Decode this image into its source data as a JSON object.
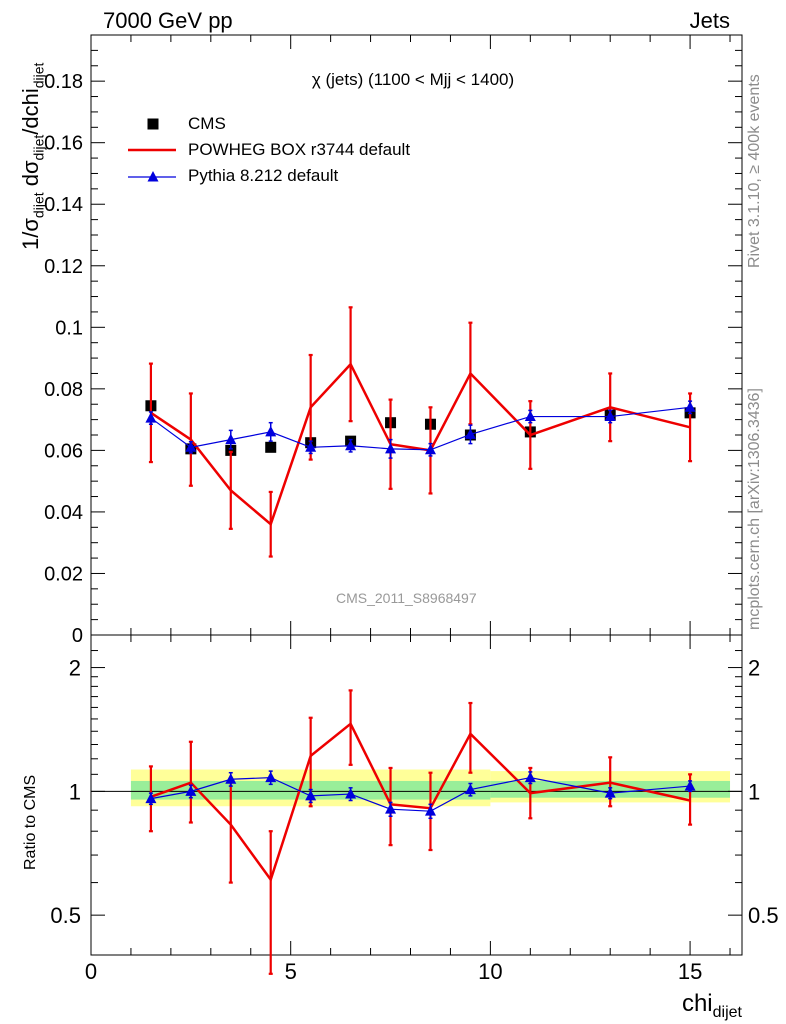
{
  "header": {
    "left": "7000 GeV pp",
    "right": "Jets"
  },
  "side_text": {
    "top": "Rivet 3.1.10, ≥ 400k events",
    "bottom": "mcplots.cern.ch [arXiv:1306.3436]"
  },
  "watermark": "CMS_2011_S8968497",
  "chart_data": [
    {
      "type": "scatter",
      "title": "χ (jets) (1100 < Mjj < 1400)",
      "xlabel_main": "chi",
      "xlabel_sub": "dijet",
      "ylabel_prefix": "1/σ",
      "ylabel_sub1": "dijet",
      "ylabel_mid": " dσ",
      "ylabel_sub2": "dijet",
      "ylabel_tail": "/dchi",
      "ylabel_sub3": "dijet",
      "xlim": [
        0,
        16.3
      ],
      "ylim": [
        0,
        0.195
      ],
      "x_ticks": [
        0,
        5,
        10,
        15
      ],
      "y_ticks": [
        0,
        0.02,
        0.04,
        0.06,
        0.08,
        0.1,
        0.12,
        0.14,
        0.16,
        0.18
      ],
      "y_tick_labels": [
        "0",
        "0.02",
        "0.04",
        "0.06",
        "0.08",
        "0.1",
        "0.12",
        "0.14",
        "0.16",
        "0.18"
      ],
      "legend": [
        "CMS",
        "POWHEG BOX r3744 default",
        "Pythia 8.212 default"
      ],
      "x": [
        1.5,
        2.5,
        3.5,
        4.5,
        5.5,
        6.5,
        7.5,
        8.5,
        9.5,
        11,
        13,
        15
      ],
      "series": [
        {
          "name": "CMS",
          "color": "#000000",
          "values": [
            0.0745,
            0.0605,
            0.06,
            0.061,
            0.0625,
            0.063,
            0.069,
            0.0685,
            0.065,
            0.066,
            0.0715,
            0.0722
          ],
          "err": [
            0.0015,
            0.0012,
            0.0012,
            0.0012,
            0.0012,
            0.0012,
            0.0015,
            0.0015,
            0.0015,
            0.0015,
            0.0015,
            0.0015
          ]
        },
        {
          "name": "POWHEG BOX r3744 default",
          "color": "#ee0000",
          "values": [
            0.0722,
            0.0635,
            0.047,
            0.036,
            0.074,
            0.088,
            0.062,
            0.06,
            0.085,
            0.065,
            0.074,
            0.0675
          ],
          "err": [
            0.016,
            0.015,
            0.0125,
            0.0105,
            0.017,
            0.0185,
            0.0145,
            0.014,
            0.0165,
            0.011,
            0.011,
            0.011
          ]
        },
        {
          "name": "Pythia 8.212 default",
          "color": "#0000dd",
          "values": [
            0.0705,
            0.061,
            0.0635,
            0.066,
            0.061,
            0.0615,
            0.0605,
            0.0602,
            0.0652,
            0.071,
            0.071,
            0.074
          ],
          "err": [
            0.002,
            0.0018,
            0.003,
            0.003,
            0.002,
            0.002,
            0.003,
            0.002,
            0.003,
            0.002,
            0.002,
            0.002
          ]
        }
      ]
    },
    {
      "type": "scatter",
      "ylabel": "Ratio to CMS",
      "yscale": "log",
      "ylim": [
        0.4,
        2.4
      ],
      "y_ticks": [
        0.5,
        1,
        2
      ],
      "y_tick_labels": [
        "0.5",
        "1",
        "2"
      ],
      "x": [
        1.5,
        2.5,
        3.5,
        4.5,
        5.5,
        6.5,
        7.5,
        8.5,
        9.5,
        11,
        13,
        15
      ],
      "bands": [
        {
          "name": "yellow",
          "color": "#ffff99",
          "segments": [
            [
              1.0,
              10.0,
              0.92,
              1.13
            ],
            [
              10.0,
              16.0,
              0.94,
              1.12
            ]
          ]
        },
        {
          "name": "green",
          "color": "#99ee99",
          "segments": [
            [
              1.0,
              10.0,
              0.955,
              1.06
            ],
            [
              10.0,
              16.0,
              0.965,
              1.06
            ]
          ]
        }
      ],
      "series": [
        {
          "name": "POWHEG BOX r3744 default",
          "color": "#ee0000",
          "values": [
            0.97,
            1.05,
            0.83,
            0.61,
            1.22,
            1.46,
            0.93,
            0.91,
            1.38,
            0.99,
            1.05,
            0.95
          ],
          "err_low": [
            0.17,
            0.21,
            0.23,
            0.25,
            0.3,
            0.3,
            0.19,
            0.19,
            0.27,
            0.13,
            0.13,
            0.12
          ],
          "err_high": [
            0.18,
            0.27,
            0.23,
            0.19,
            0.29,
            0.3,
            0.21,
            0.2,
            0.26,
            0.15,
            0.16,
            0.15
          ]
        },
        {
          "name": "Pythia 8.212 default",
          "color": "#0000dd",
          "values": [
            0.96,
            1.0,
            1.07,
            1.08,
            0.975,
            0.985,
            0.905,
            0.895,
            1.01,
            1.08,
            0.99,
            1.03
          ],
          "err": [
            0.03,
            0.035,
            0.04,
            0.04,
            0.035,
            0.035,
            0.035,
            0.035,
            0.035,
            0.035,
            0.03,
            0.03
          ]
        }
      ]
    }
  ]
}
